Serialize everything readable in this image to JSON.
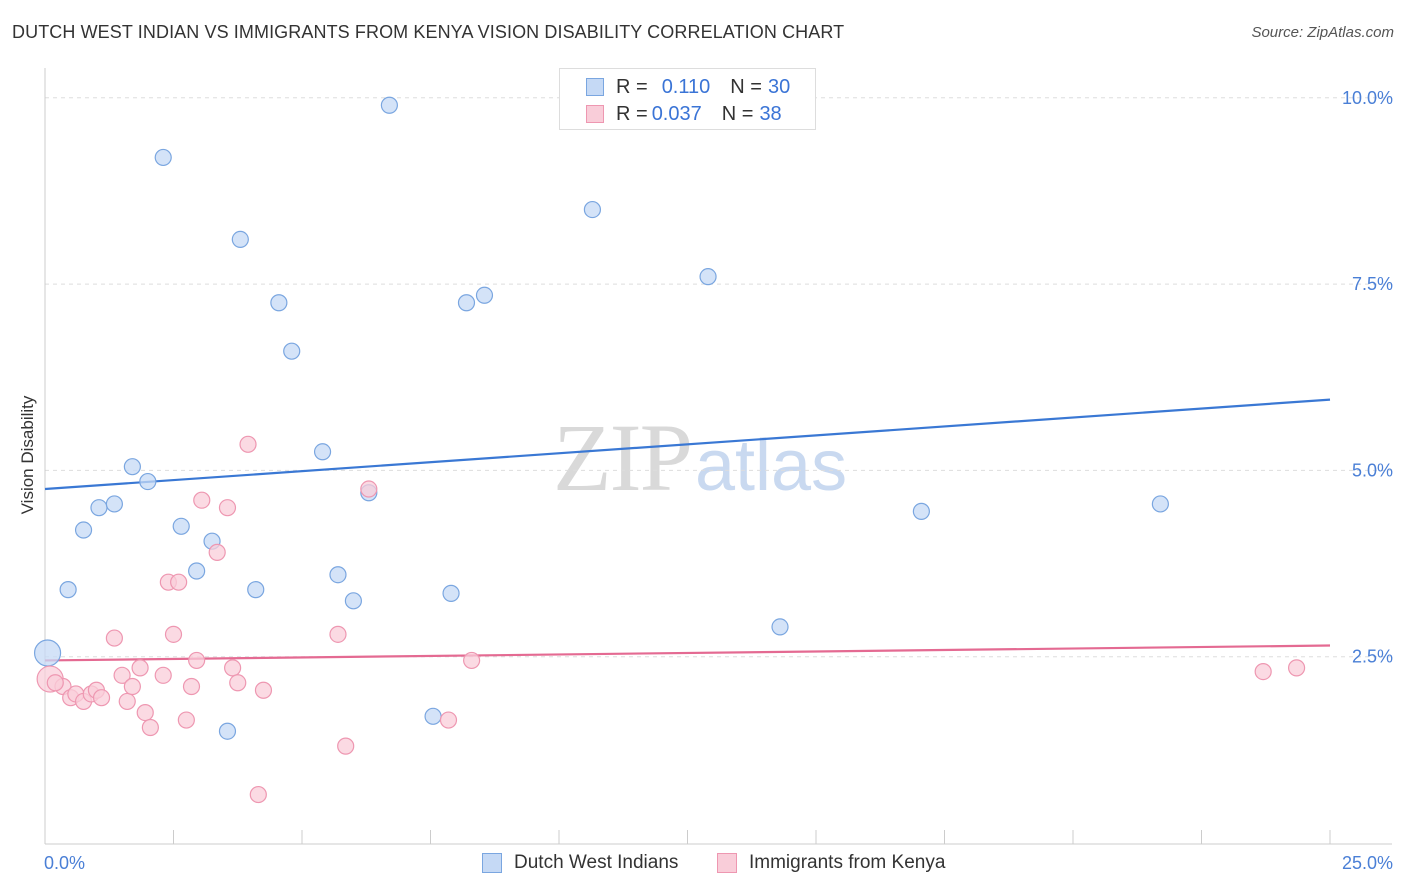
{
  "header": {
    "title": "DUTCH WEST INDIAN VS IMMIGRANTS FROM KENYA VISION DISABILITY CORRELATION CHART",
    "source": "Source: ZipAtlas.com"
  },
  "watermark": {
    "zip": "ZIP",
    "atlas": "atlas"
  },
  "legend": {
    "rows": [
      {
        "r_label": "R = ",
        "r_value": "0.110",
        "n_label": "N = ",
        "n_value": "30"
      },
      {
        "r_label": "R = ",
        "r_value": "0.037",
        "n_label": "N = ",
        "n_value": "38"
      }
    ]
  },
  "colors": {
    "blue_fill": "#c5d9f5",
    "blue_stroke": "#7aa6e0",
    "blue_line": "#3a78d4",
    "pink_fill": "#f9cdd9",
    "pink_stroke": "#ee97b1",
    "pink_line": "#e46a92",
    "grid": "#dddddd",
    "tick_label": "#4a7fd6"
  },
  "chart_data": {
    "type": "scatter",
    "title": "DUTCH WEST INDIAN VS IMMIGRANTS FROM KENYA VISION DISABILITY CORRELATION CHART",
    "xlabel": "",
    "ylabel": "Vision Disability",
    "xlim": [
      0,
      25
    ],
    "ylim": [
      0,
      10.4
    ],
    "x_tick_labels": [
      "0.0%",
      "25.0%"
    ],
    "y_ticks": [
      {
        "value": 2.5,
        "label": "2.5%"
      },
      {
        "value": 5.0,
        "label": "5.0%"
      },
      {
        "value": 7.5,
        "label": "7.5%"
      },
      {
        "value": 10.0,
        "label": "10.0%"
      }
    ],
    "x_minor_ticks": [
      2.5,
      5,
      7.5,
      10,
      12.5,
      15,
      17.5,
      20,
      22.5,
      25
    ],
    "grid": true,
    "series": [
      {
        "name": "Dutch West Indians",
        "R": 0.11,
        "N": 30,
        "trend": {
          "x0": 0,
          "y0": 4.75,
          "x1": 25,
          "y1": 5.95
        },
        "points": [
          {
            "x": 0.05,
            "y": 2.55,
            "big": true
          },
          {
            "x": 0.45,
            "y": 3.4
          },
          {
            "x": 0.75,
            "y": 4.2
          },
          {
            "x": 1.05,
            "y": 4.5
          },
          {
            "x": 1.35,
            "y": 4.55
          },
          {
            "x": 1.7,
            "y": 5.05
          },
          {
            "x": 2.0,
            "y": 4.85
          },
          {
            "x": 2.3,
            "y": 9.2
          },
          {
            "x": 2.65,
            "y": 4.25
          },
          {
            "x": 2.95,
            "y": 3.65
          },
          {
            "x": 3.25,
            "y": 4.05
          },
          {
            "x": 3.55,
            "y": 1.5
          },
          {
            "x": 3.8,
            "y": 8.1
          },
          {
            "x": 4.1,
            "y": 3.4
          },
          {
            "x": 4.55,
            "y": 7.25
          },
          {
            "x": 4.8,
            "y": 6.6
          },
          {
            "x": 5.4,
            "y": 5.25
          },
          {
            "x": 5.7,
            "y": 3.6
          },
          {
            "x": 6.0,
            "y": 3.25
          },
          {
            "x": 6.3,
            "y": 4.7
          },
          {
            "x": 6.7,
            "y": 9.9
          },
          {
            "x": 7.55,
            "y": 1.7
          },
          {
            "x": 7.9,
            "y": 3.35
          },
          {
            "x": 8.2,
            "y": 7.25
          },
          {
            "x": 8.55,
            "y": 7.35
          },
          {
            "x": 10.65,
            "y": 8.5
          },
          {
            "x": 12.9,
            "y": 7.6
          },
          {
            "x": 14.3,
            "y": 2.9
          },
          {
            "x": 17.05,
            "y": 4.45
          },
          {
            "x": 21.7,
            "y": 4.55
          }
        ]
      },
      {
        "name": "Immigrants from Kenya",
        "R": 0.037,
        "N": 38,
        "trend": {
          "x0": 0,
          "y0": 2.45,
          "x1": 25,
          "y1": 2.65
        },
        "points": [
          {
            "x": 0.1,
            "y": 2.2,
            "big": true
          },
          {
            "x": 0.35,
            "y": 2.1
          },
          {
            "x": 0.5,
            "y": 1.95
          },
          {
            "x": 0.6,
            "y": 2.0
          },
          {
            "x": 0.75,
            "y": 1.9
          },
          {
            "x": 0.9,
            "y": 2.0
          },
          {
            "x": 1.0,
            "y": 2.05
          },
          {
            "x": 1.1,
            "y": 1.95
          },
          {
            "x": 1.35,
            "y": 2.75
          },
          {
            "x": 1.5,
            "y": 2.25
          },
          {
            "x": 1.6,
            "y": 1.9
          },
          {
            "x": 1.7,
            "y": 2.1
          },
          {
            "x": 1.85,
            "y": 2.35
          },
          {
            "x": 1.95,
            "y": 1.75
          },
          {
            "x": 2.05,
            "y": 1.55
          },
          {
            "x": 2.3,
            "y": 2.25
          },
          {
            "x": 2.4,
            "y": 3.5
          },
          {
            "x": 2.5,
            "y": 2.8
          },
          {
            "x": 2.6,
            "y": 3.5
          },
          {
            "x": 2.75,
            "y": 1.65
          },
          {
            "x": 2.85,
            "y": 2.1
          },
          {
            "x": 2.95,
            "y": 2.45
          },
          {
            "x": 3.05,
            "y": 4.6
          },
          {
            "x": 3.35,
            "y": 3.9
          },
          {
            "x": 3.55,
            "y": 4.5
          },
          {
            "x": 3.65,
            "y": 2.35
          },
          {
            "x": 3.75,
            "y": 2.15
          },
          {
            "x": 3.95,
            "y": 5.35
          },
          {
            "x": 4.15,
            "y": 0.65
          },
          {
            "x": 4.25,
            "y": 2.05
          },
          {
            "x": 5.7,
            "y": 2.8
          },
          {
            "x": 5.85,
            "y": 1.3
          },
          {
            "x": 6.3,
            "y": 4.75
          },
          {
            "x": 7.85,
            "y": 1.65
          },
          {
            "x": 8.3,
            "y": 2.45
          },
          {
            "x": 23.7,
            "y": 2.3
          },
          {
            "x": 24.35,
            "y": 2.35
          },
          {
            "x": 0.2,
            "y": 2.15
          }
        ]
      }
    ]
  }
}
